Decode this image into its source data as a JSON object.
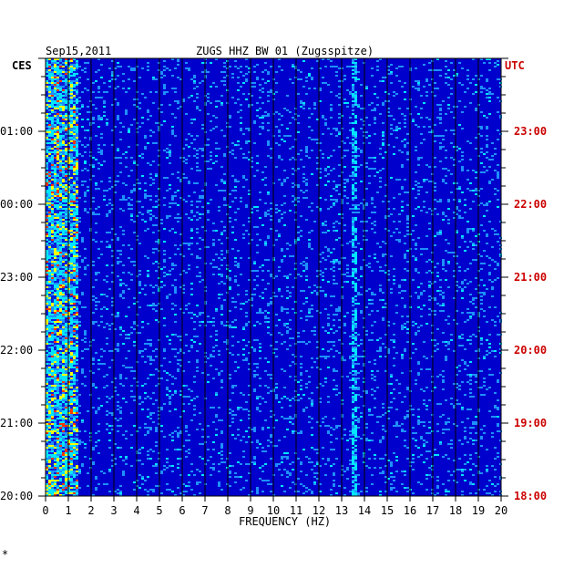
{
  "chart_data": {
    "type": "heatmap",
    "date": "Sep15,2011",
    "title": "ZUGS HHZ BW 01 (Zugsspitze)",
    "xlabel": "FREQUENCY (HZ)",
    "left_axis_label": "CES",
    "right_axis_label": "UTC",
    "xlim": [
      0,
      20
    ],
    "x_ticks": [
      "0",
      "1",
      "2",
      "3",
      "4",
      "5",
      "6",
      "7",
      "8",
      "9",
      "10",
      "11",
      "12",
      "13",
      "14",
      "15",
      "16",
      "17",
      "18",
      "19",
      "20"
    ],
    "left_ticks": [
      "01:00",
      "00:00",
      "23:00",
      "22:00",
      "21:00",
      "20:00"
    ],
    "right_ticks": [
      "23:00",
      "22:00",
      "21:00",
      "20:00",
      "19:00",
      "18:00"
    ],
    "colors": {
      "background": "#0000cc",
      "low": "#0a1fd8",
      "mid": "#1e90ff",
      "high": "#00e5ff",
      "hot": "#ffff00",
      "peak": "#ff3300",
      "utc_color": "#cc0000",
      "grid": "#000000"
    },
    "features": [
      {
        "name": "low-frequency noise band",
        "freq_range_hz": [
          0,
          1
        ]
      },
      {
        "name": "persistent line",
        "freq_hz": 13.5
      }
    ]
  }
}
